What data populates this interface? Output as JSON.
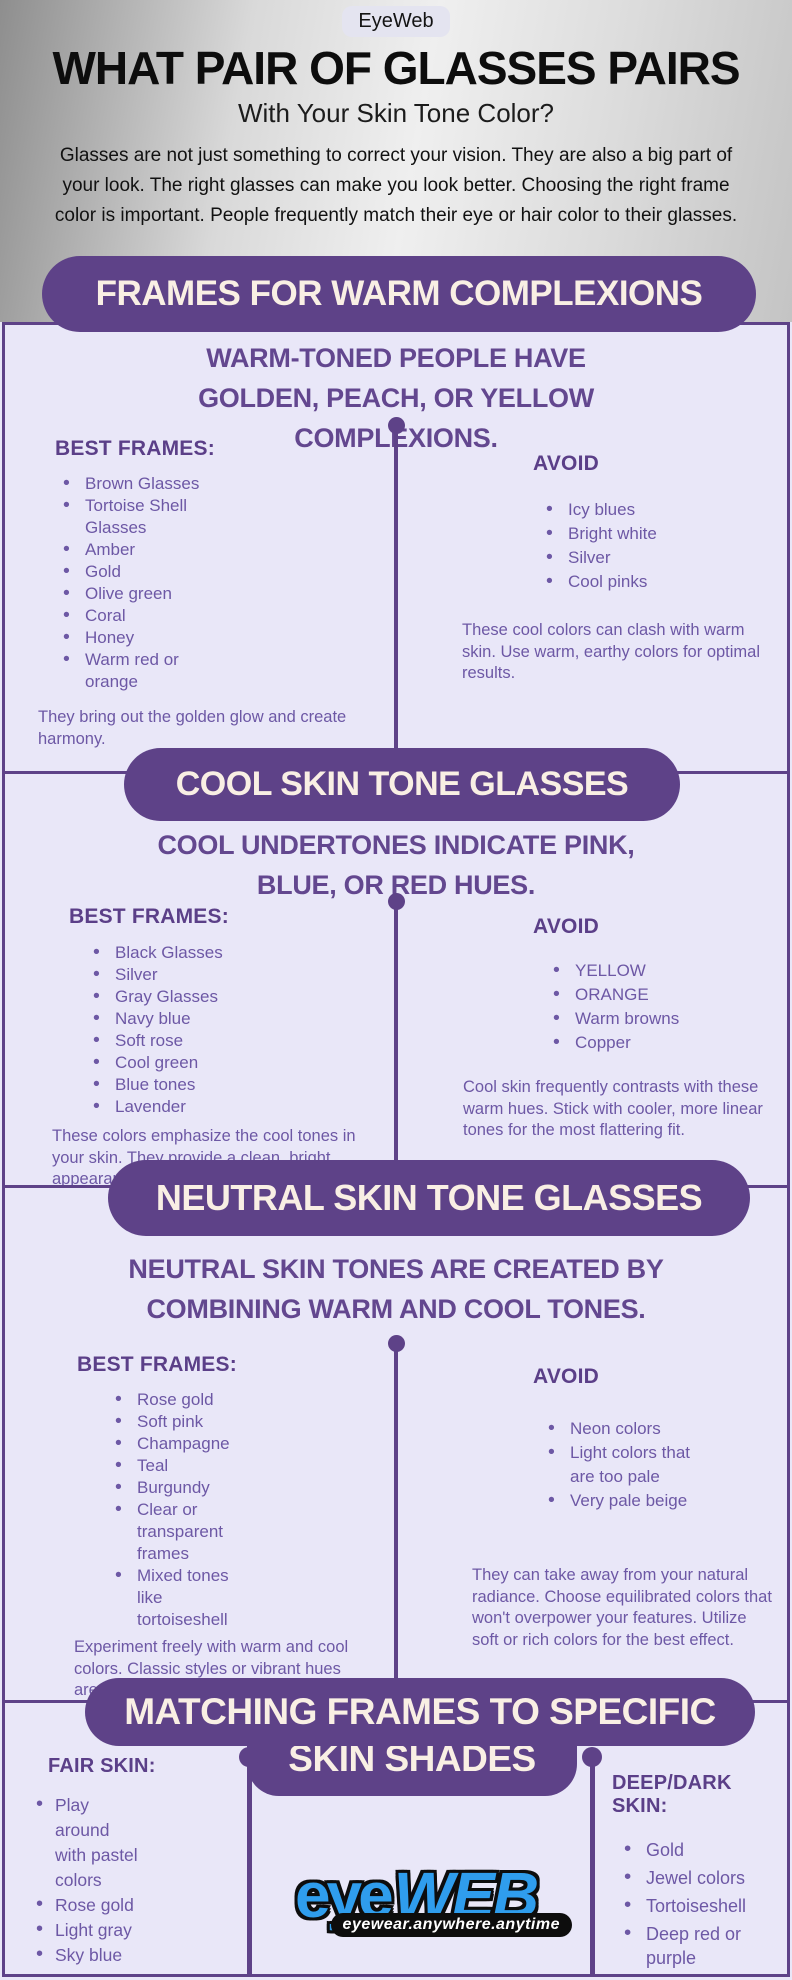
{
  "header": {
    "badge": "EyeWeb",
    "title": "WHAT PAIR OF GLASSES PAIRS",
    "subtitle": "With Your Skin Tone Color?",
    "intro": "Glasses are not just something to correct your vision. They are also a big part of your look. The right glasses can make you look better. Choosing the right frame color is important. People frequently match their eye or hair color to their glasses."
  },
  "colors": {
    "banner_purple": "#5e4288",
    "banner_text": "#f9efe4",
    "panel_background": "#e9e7f8",
    "border_purple": "#5e4288",
    "heading_text": "#5b3f88",
    "body_text": "#6d58a5",
    "logo_blue": "#2f9ded"
  },
  "sections": [
    {
      "banner": "FRAMES FOR WARM COMPLEXIONS",
      "subtitle": "WARM-TONED PEOPLE HAVE GOLDEN, PEACH, OR YELLOW COMPLEXIONS.",
      "best_label": "BEST FRAMES:",
      "best_items": [
        "Brown Glasses",
        "Tortoise Shell Glasses",
        "Amber",
        "Gold",
        "Olive green",
        "Coral",
        "Honey",
        "Warm red or orange"
      ],
      "best_note": "They bring out the golden glow and create harmony.",
      "avoid_label": "AVOID",
      "avoid_items": [
        "Icy blues",
        "Bright white",
        "Silver",
        "Cool pinks"
      ],
      "avoid_note": "These cool colors can clash with warm skin. Use warm, earthy colors for optimal results."
    },
    {
      "banner": "COOL SKIN TONE GLASSES",
      "subtitle": "COOL UNDERTONES INDICATE PINK, BLUE, OR RED HUES.",
      "best_label": "BEST FRAMES:",
      "best_items": [
        "Black Glasses",
        "Silver",
        "Gray Glasses",
        "Navy blue",
        "Soft rose",
        "Cool green",
        "Blue tones",
        "Lavender"
      ],
      "best_note": "These colors emphasize the cool tones in your skin. They provide a clean, bright appearance.",
      "avoid_label": "AVOID",
      "avoid_items": [
        "YELLOW",
        "ORANGE",
        "Warm browns",
        "Copper"
      ],
      "avoid_note": "Cool skin frequently contrasts with these warm hues. Stick with cooler, more linear tones for the most flattering fit."
    },
    {
      "banner": "NEUTRAL SKIN TONE GLASSES",
      "subtitle": "NEUTRAL SKIN TONES ARE CREATED BY COMBINING WARM AND COOL TONES.",
      "best_label": "BEST FRAMES:",
      "best_items": [
        "Rose gold",
        "Soft pink",
        "Champagne",
        "Teal",
        "Burgundy",
        "Clear or transparent frames",
        "Mixed tones like tortoiseshell"
      ],
      "best_note": "Experiment freely with warm and cool colors. Classic styles or vibrant hues are possible with neutral skin.",
      "avoid_label": "AVOID",
      "avoid_items": [
        "Neon colors",
        "Light colors that are too pale",
        "Very pale beige"
      ],
      "avoid_note": "They can take away from your natural radiance. Choose equilibrated colors that won't overpower your features. Utilize soft or rich colors for the best effect."
    }
  ],
  "bottom": {
    "banner_line1": "MATCHING FRAMES TO SPECIFIC",
    "banner_line2": "SKIN SHADES",
    "fair_label": "FAIR SKIN:",
    "fair_items": [
      "Play around with pastel colors",
      "Rose gold",
      "Light gray",
      "Sky blue"
    ],
    "deep_label": "DEEP/DARK SKIN:",
    "deep_items": [
      "Gold",
      "Jewel colors",
      "Tortoiseshell",
      "Deep red or purple"
    ],
    "logo_eye": "eye",
    "logo_web": "WEB",
    "logo_tagline": "eyewear.anywhere.anytime"
  }
}
